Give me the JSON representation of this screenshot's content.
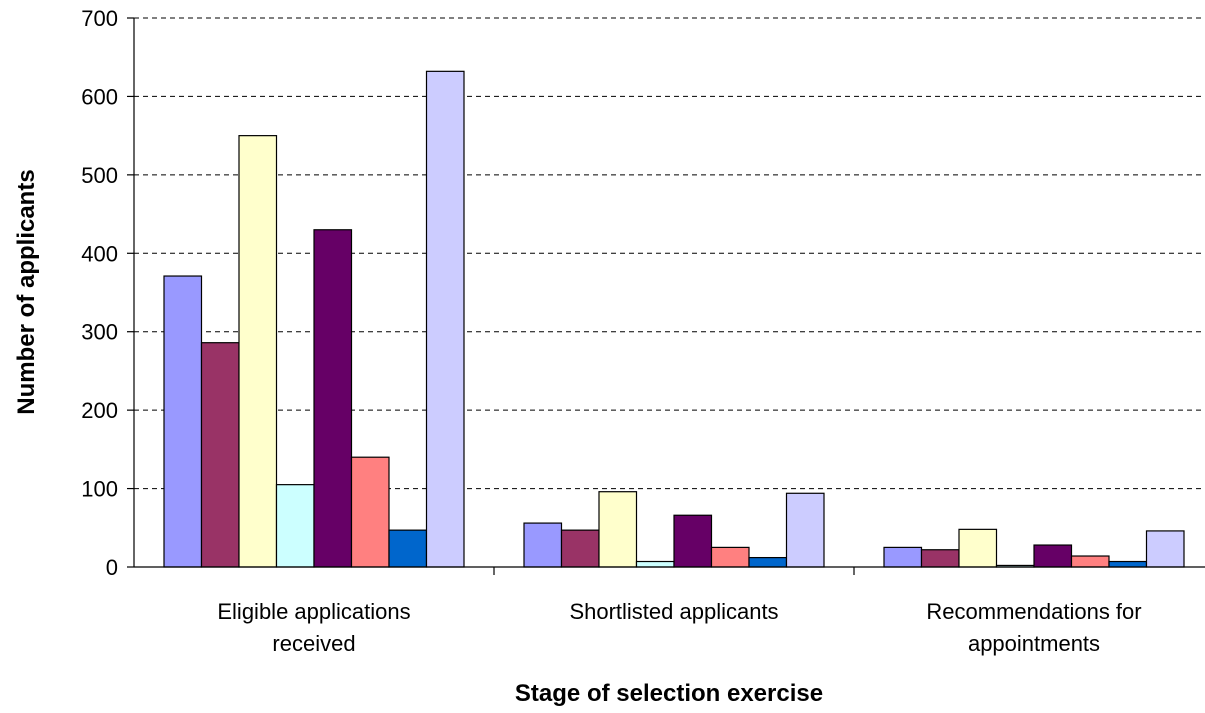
{
  "chart_data": {
    "type": "bar",
    "title": "",
    "xlabel": "Stage of selection exercise",
    "ylabel": "Number of applicants",
    "ylim": [
      0,
      700
    ],
    "yticks": [
      0,
      100,
      200,
      300,
      400,
      500,
      600,
      700
    ],
    "grid": true,
    "legend": "none",
    "categories": [
      [
        "Eligible applications",
        "received"
      ],
      [
        "Shortlisted applicants"
      ],
      [
        "Recommendations for",
        "appointments"
      ]
    ],
    "series": [
      {
        "color": "#9999ff",
        "values": [
          371,
          56,
          25
        ]
      },
      {
        "color": "#993366",
        "values": [
          286,
          47,
          22
        ]
      },
      {
        "color": "#ffffcc",
        "values": [
          550,
          96,
          48
        ]
      },
      {
        "color": "#ccffff",
        "values": [
          105,
          7,
          2
        ]
      },
      {
        "color": "#660066",
        "values": [
          430,
          66,
          28
        ]
      },
      {
        "color": "#ff8080",
        "values": [
          140,
          25,
          14
        ]
      },
      {
        "color": "#0066cc",
        "values": [
          47,
          12,
          7
        ]
      },
      {
        "color": "#ccccff",
        "values": [
          632,
          94,
          46
        ]
      }
    ]
  }
}
